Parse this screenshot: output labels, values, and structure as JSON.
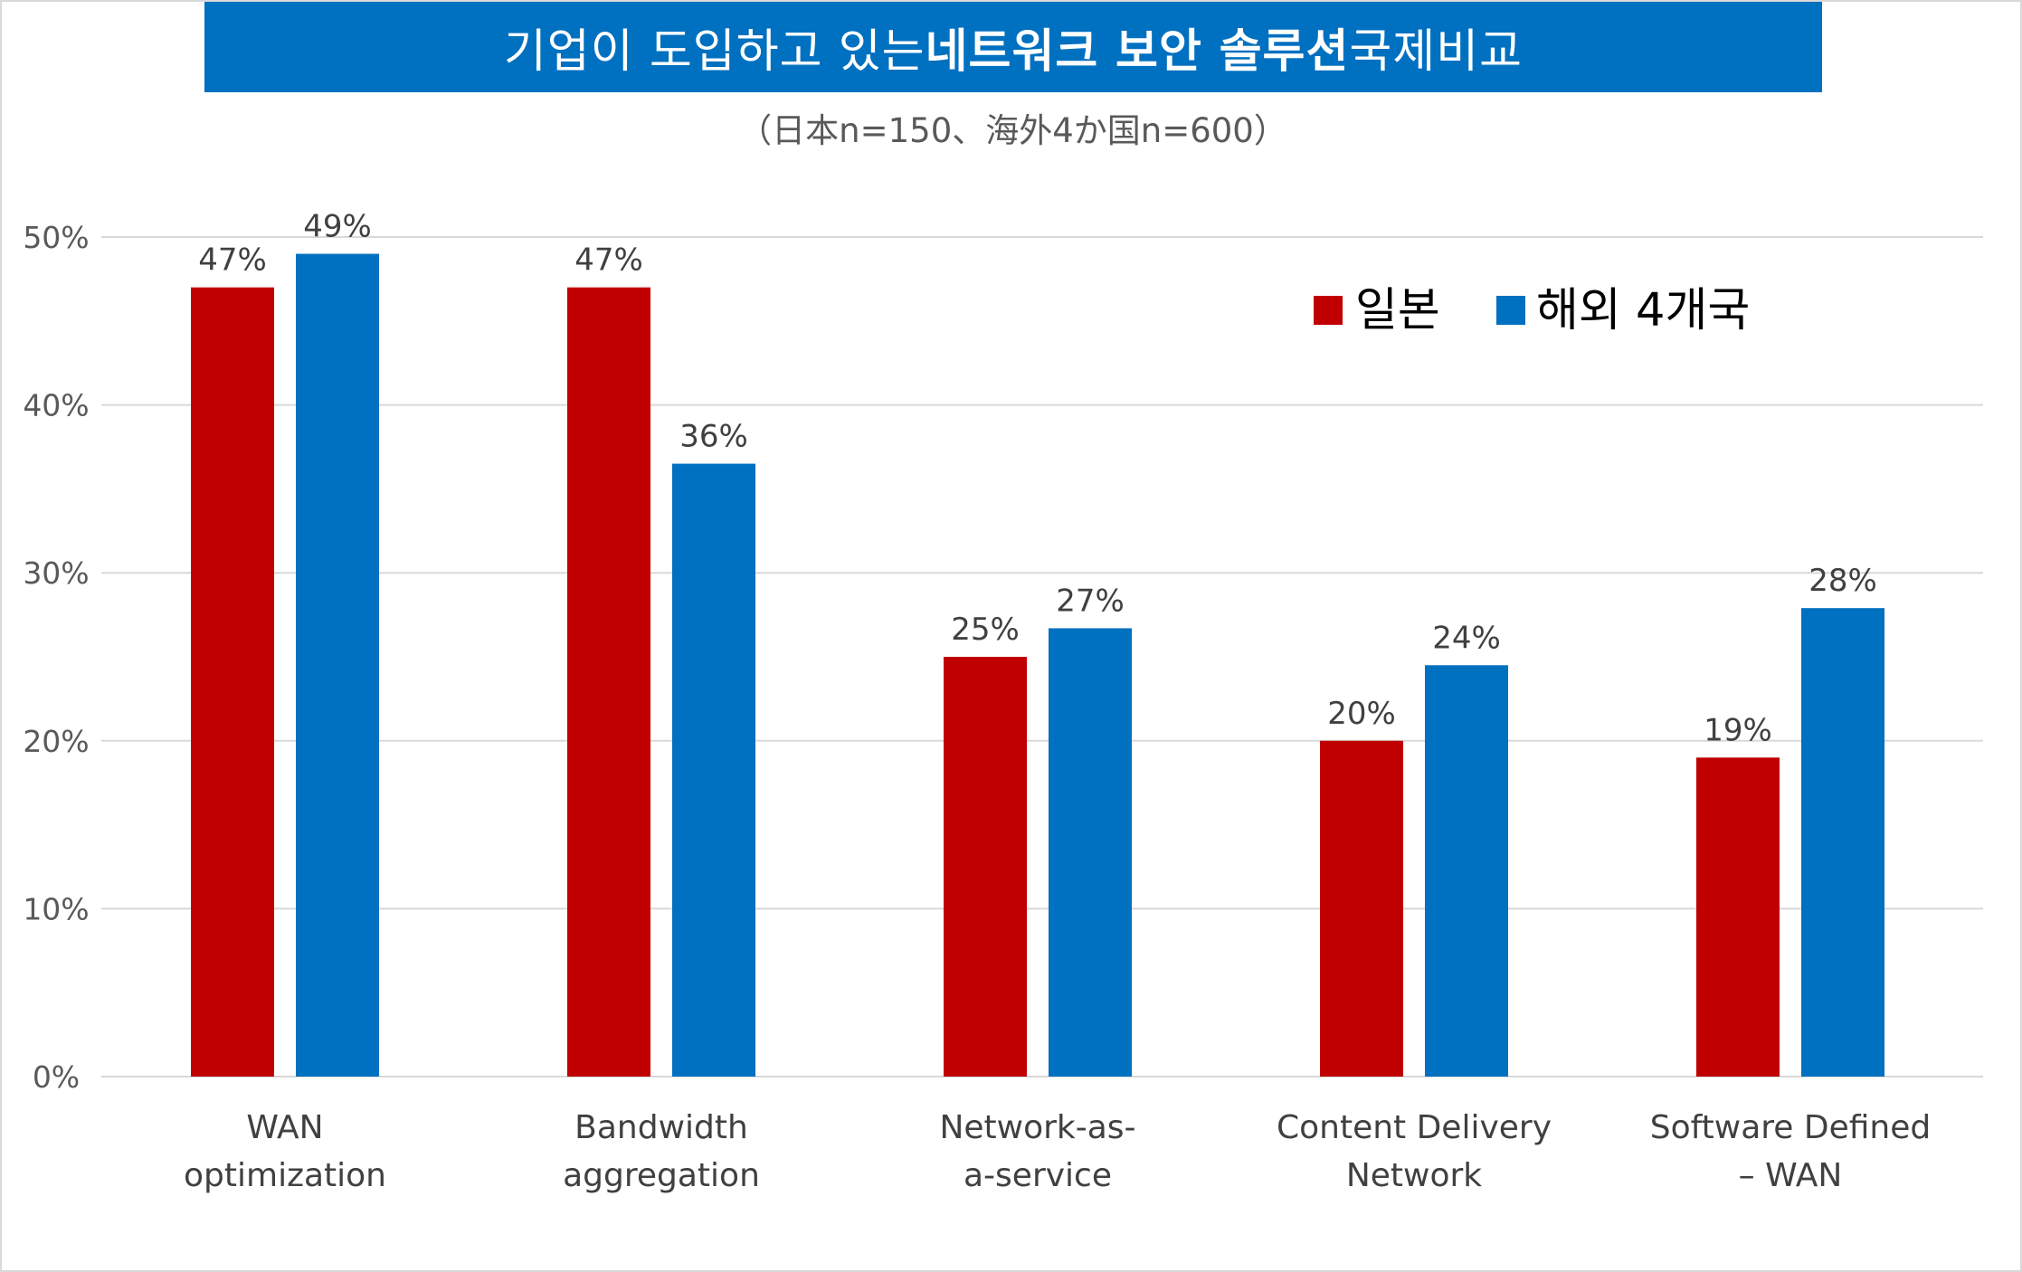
{
  "title": {
    "part1": "기업이 도입하고 있는 ",
    "bold": "네트워크 보안 솔루션",
    "part2": " 국제비교"
  },
  "subtitle": "（日本n=150、海外4か国n=600）",
  "colors": {
    "japan": "#c00000",
    "overseas": "#0070c0",
    "title_bg": "#0070c0",
    "grid": "#d9d9d9"
  },
  "chart_data": {
    "type": "bar",
    "title": "기업이 도입하고 있는 네트워크 보안 솔루션 국제비교",
    "subtitle": "（日本n=150、海外4か国n=600）",
    "categories": [
      [
        "WAN",
        "optimization"
      ],
      [
        "Bandwidth",
        "aggregation"
      ],
      [
        "Network-as-",
        "a-service"
      ],
      [
        "Content Delivery",
        "Network"
      ],
      [
        "Software Defined",
        "– WAN"
      ]
    ],
    "series": [
      {
        "name": "일본",
        "color": "#c00000",
        "values": [
          47,
          47,
          25,
          20,
          19
        ],
        "labels": [
          "47%",
          "47%",
          "25%",
          "20%",
          "19%"
        ]
      },
      {
        "name": "해외 4개국",
        "color": "#0070c0",
        "values": [
          49,
          36.5,
          26.7,
          24.5,
          27.9
        ],
        "labels": [
          "49%",
          "36%",
          "27%",
          "24%",
          "28%"
        ]
      }
    ],
    "y_ticks": [
      "0%",
      "10%",
      "20%",
      "30%",
      "40%",
      "50%"
    ],
    "ylim": [
      0,
      50
    ],
    "grid": true,
    "legend_position": "top-right",
    "xlabel": "",
    "ylabel": ""
  }
}
